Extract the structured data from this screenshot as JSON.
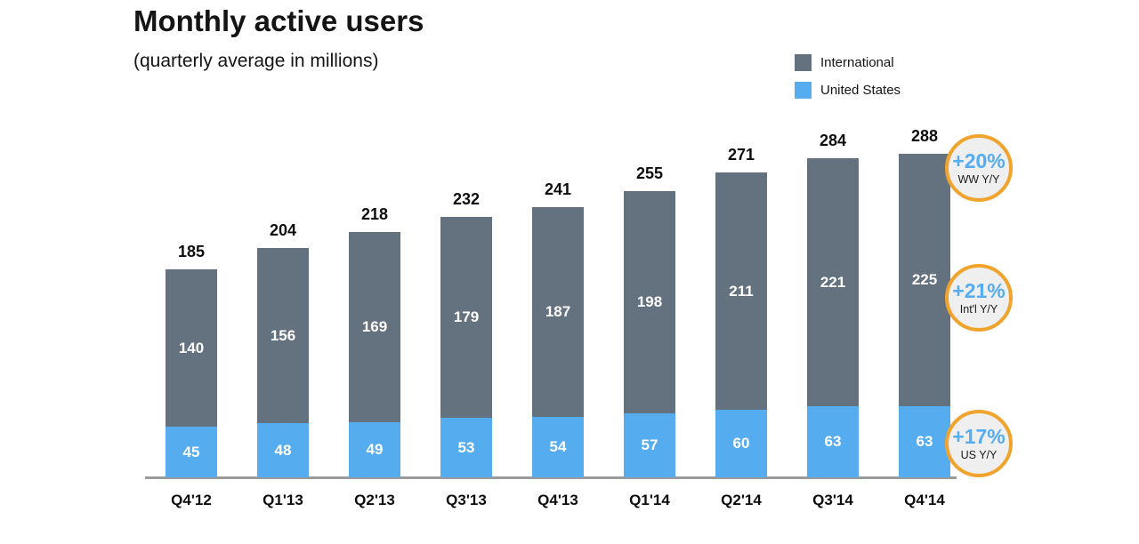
{
  "header": {
    "title": "Monthly active users",
    "subtitle": "(quarterly average in millions)"
  },
  "legend": [
    {
      "label": "International",
      "color": "#64717E"
    },
    {
      "label": "United States",
      "color": "#55ACEE"
    }
  ],
  "chart_data": {
    "type": "bar",
    "stacked": true,
    "title": "Monthly active users",
    "subtitle": "(quarterly average in millions)",
    "xlabel": "",
    "ylabel": "",
    "ylim": [
      0,
      300
    ],
    "grid": false,
    "legend_position": "top-right",
    "categories": [
      "Q4'12",
      "Q1'13",
      "Q2'13",
      "Q3'13",
      "Q4'13",
      "Q1'14",
      "Q2'14",
      "Q3'14",
      "Q4'14"
    ],
    "series": [
      {
        "name": "United States",
        "color": "#55ACEE",
        "values": [
          45,
          48,
          49,
          53,
          54,
          57,
          60,
          63,
          63
        ]
      },
      {
        "name": "International",
        "color": "#64717E",
        "values": [
          140,
          156,
          169,
          179,
          187,
          198,
          211,
          221,
          225
        ]
      }
    ],
    "totals": [
      185,
      204,
      218,
      232,
      241,
      255,
      271,
      284,
      288
    ],
    "value_labels": "white labels inside segments, bold totals above bars"
  },
  "badges": [
    {
      "value": "+20%",
      "label": "WW Y/Y"
    },
    {
      "value": "+21%",
      "label": "Int'l Y/Y"
    },
    {
      "value": "+17%",
      "label": "US Y/Y"
    }
  ],
  "colors": {
    "international": "#64717E",
    "united_states": "#55ACEE",
    "badge_ring": "#F0A42E",
    "badge_fill": "#EFEFF0",
    "badge_value_text": "#55ACEE",
    "axis_line": "#9B9B9B",
    "segment_label_text": "#FFFFFF",
    "total_label_text": "#0D0D0D"
  }
}
